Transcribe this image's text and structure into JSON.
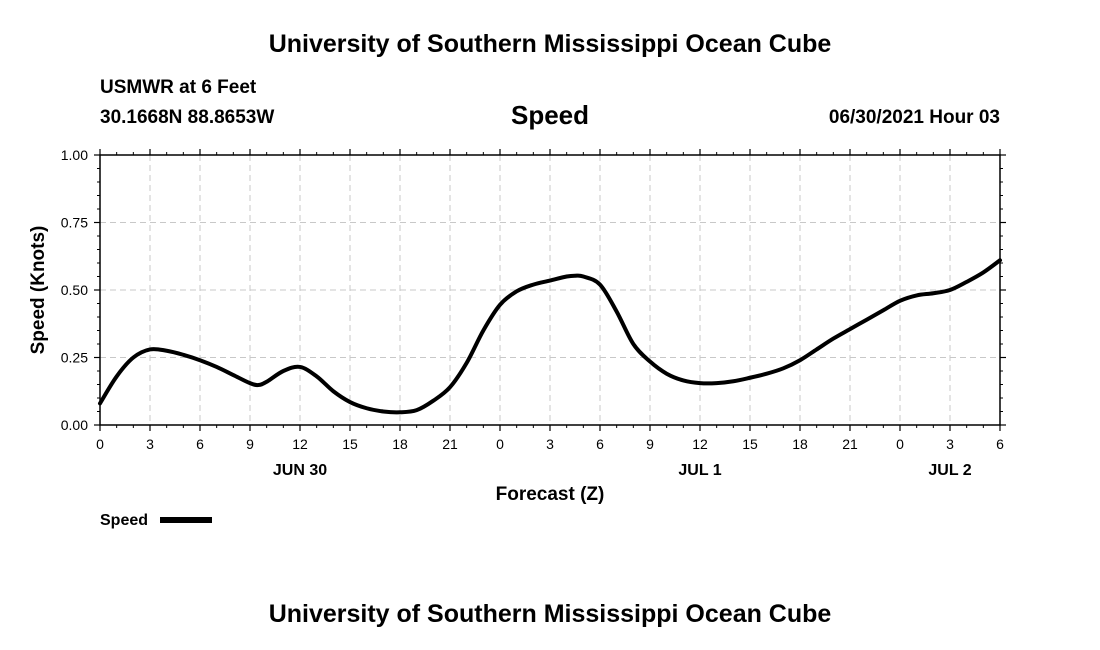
{
  "header": {
    "title": "University of Southern Mississippi Ocean Cube",
    "station": "USMWR at 6 Feet",
    "coords": "30.1668N  88.8653W",
    "chart_title": "Speed",
    "datetime": "06/30/2021 Hour 03"
  },
  "footer": {
    "title": "University of Southern Mississippi Ocean Cube"
  },
  "legend": {
    "label": "Speed",
    "color": "#000000"
  },
  "chart_data": {
    "type": "line",
    "title": "Speed",
    "xlabel": "Forecast (Z)",
    "ylabel": "Speed (Knots)",
    "xlim": [
      0,
      54
    ],
    "ylim": [
      0,
      1
    ],
    "grid": true,
    "yticks": [
      0,
      0.25,
      0.5,
      0.75,
      1
    ],
    "ytick_labels": [
      "0.00",
      "0.25",
      "0.50",
      "0.75",
      "1.00"
    ],
    "xticks": [
      0,
      3,
      6,
      9,
      12,
      15,
      18,
      21,
      24,
      27,
      30,
      33,
      36,
      39,
      42,
      45,
      48,
      51,
      54
    ],
    "xtick_labels": [
      "0",
      "3",
      "6",
      "9",
      "12",
      "15",
      "18",
      "21",
      "0",
      "3",
      "6",
      "9",
      "12",
      "15",
      "18",
      "21",
      "0",
      "3",
      "6"
    ],
    "day_labels": [
      {
        "x": 12,
        "label": "JUN 30"
      },
      {
        "x": 36,
        "label": "JUL 1"
      },
      {
        "x": 51,
        "label": "JUL 2"
      }
    ],
    "series": [
      {
        "name": "Speed",
        "color": "#000000",
        "x": [
          0,
          1,
          2,
          3,
          4,
          5,
          6,
          7,
          8,
          9,
          9.5,
          10,
          11,
          12,
          13,
          14,
          15,
          16,
          17,
          18,
          19,
          20,
          21,
          22,
          23,
          24,
          25,
          26,
          27,
          28,
          28.5,
          29,
          30,
          31,
          32,
          33,
          34,
          35,
          36,
          37,
          38,
          39,
          40,
          41,
          42,
          43,
          44,
          45,
          46,
          47,
          48,
          49,
          50,
          51,
          52,
          53,
          54
        ],
        "y": [
          0.08,
          0.18,
          0.25,
          0.28,
          0.275,
          0.26,
          0.24,
          0.215,
          0.185,
          0.155,
          0.148,
          0.16,
          0.2,
          0.215,
          0.18,
          0.125,
          0.085,
          0.062,
          0.05,
          0.047,
          0.055,
          0.09,
          0.14,
          0.23,
          0.35,
          0.445,
          0.495,
          0.52,
          0.535,
          0.55,
          0.553,
          0.55,
          0.52,
          0.42,
          0.3,
          0.235,
          0.19,
          0.165,
          0.155,
          0.155,
          0.162,
          0.175,
          0.19,
          0.21,
          0.24,
          0.28,
          0.32,
          0.355,
          0.39,
          0.425,
          0.46,
          0.48,
          0.488,
          0.5,
          0.53,
          0.565,
          0.61
        ]
      }
    ]
  }
}
